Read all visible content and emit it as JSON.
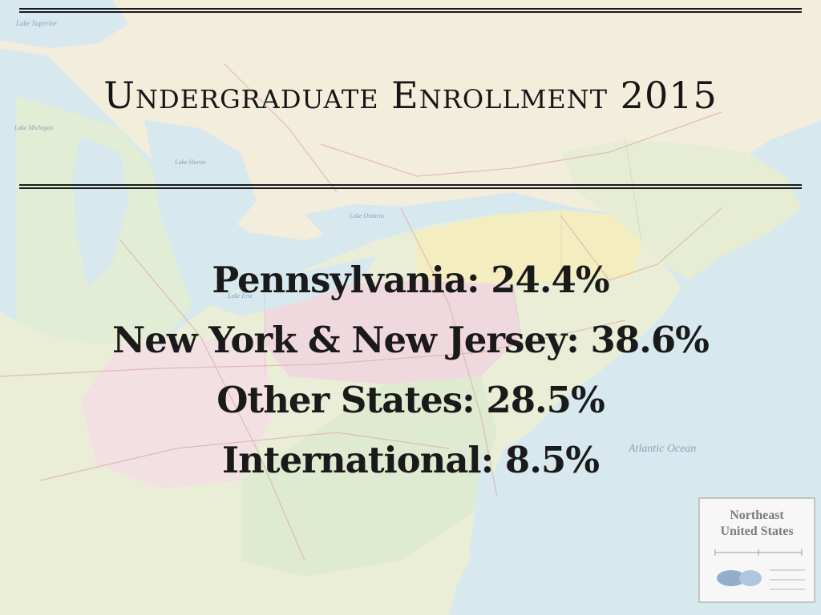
{
  "title": "Undergraduate Enrollment 2015",
  "stats": [
    {
      "label": "Pennsylvania: 24.4%"
    },
    {
      "label": "New York & New Jersey: 38.6%"
    },
    {
      "label": "Other States: 28.5%"
    },
    {
      "label": "International: 8.5%"
    }
  ],
  "map": {
    "labels": {
      "lake_superior": "Lake Superior",
      "lake_michigan": "Lake Michigan",
      "lake_huron": "Lake Huron",
      "lake_ontario": "Lake Ontario",
      "lake_erie": "Lake Erie",
      "atlantic_ocean": "Atlantic Ocean"
    },
    "legend": {
      "title_line1": "Northeast",
      "title_line2": "United States"
    },
    "colors": {
      "water": "#c9dfe9",
      "land": "#efe6cf",
      "pink": "#ebcbd1",
      "green": "#d3e3bf",
      "yellow": "#f0e6a8",
      "text": "#1a1a1a"
    }
  }
}
